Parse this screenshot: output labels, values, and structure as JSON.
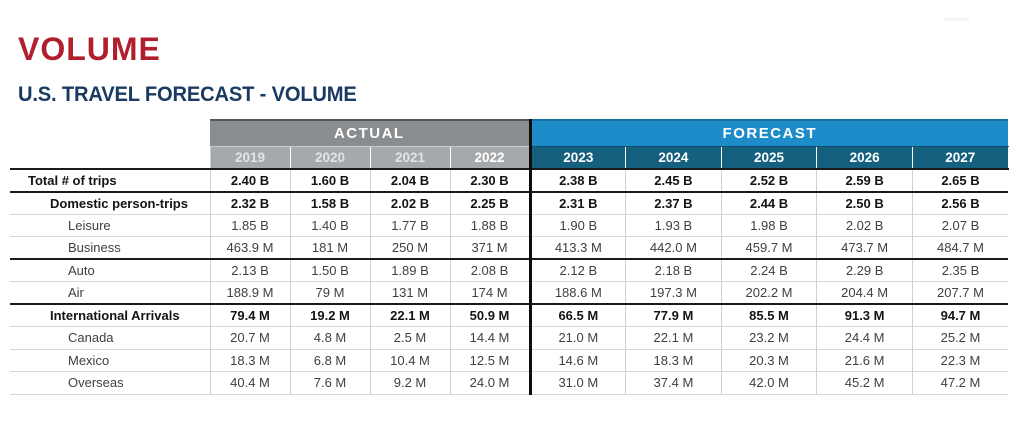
{
  "page": {
    "title": "VOLUME",
    "subtitle": "U.S. TRAVEL FORECAST - VOLUME"
  },
  "colors": {
    "title_red": "#b11f2f",
    "subtitle_navy": "#1a3a63",
    "band_gray": "#8a8d8f",
    "year_gray_bg": "#a6a9ab",
    "forecast_blue": "#1e8cc9",
    "forecast_teal": "#16607f",
    "heavy_rule": "#1a1a1a",
    "light_rule": "#d5d7d8",
    "divider_black": "#0d0d0d"
  },
  "table": {
    "sections": [
      {
        "label": "ACTUAL",
        "years": [
          "2019",
          "2020",
          "2021",
          "2022"
        ]
      },
      {
        "label": "FORECAST",
        "years": [
          "2023",
          "2024",
          "2025",
          "2026",
          "2027"
        ]
      }
    ],
    "rows": [
      {
        "label": "Total # of trips",
        "level": 0,
        "emphasis": true,
        "rule_after": "heavy",
        "actual": [
          "2.40 B",
          "1.60 B",
          "2.04 B",
          "2.30 B"
        ],
        "forecast": [
          "2.38 B",
          "2.45 B",
          "2.52 B",
          "2.59 B",
          "2.65 B"
        ]
      },
      {
        "label": "Domestic person-trips",
        "level": 1,
        "emphasis": true,
        "rule_after": "light",
        "actual": [
          "2.32 B",
          "1.58 B",
          "2.02 B",
          "2.25 B"
        ],
        "forecast": [
          "2.31 B",
          "2.37 B",
          "2.44 B",
          "2.50 B",
          "2.56 B"
        ]
      },
      {
        "label": "Leisure",
        "level": 2,
        "emphasis": false,
        "rule_after": "light",
        "actual": [
          "1.85 B",
          "1.40 B",
          "1.77 B",
          "1.88 B"
        ],
        "forecast": [
          "1.90 B",
          "1.93 B",
          "1.98 B",
          "2.02 B",
          "2.07 B"
        ]
      },
      {
        "label": "Business",
        "level": 2,
        "emphasis": false,
        "rule_after": "heavy",
        "actual": [
          "463.9 M",
          "181 M",
          "250 M",
          "371 M"
        ],
        "forecast": [
          "413.3 M",
          "442.0 M",
          "459.7 M",
          "473.7 M",
          "484.7 M"
        ]
      },
      {
        "label": "Auto",
        "level": 2,
        "emphasis": false,
        "rule_after": "light",
        "actual": [
          "2.13 B",
          "1.50 B",
          "1.89 B",
          "2.08 B"
        ],
        "forecast": [
          "2.12 B",
          "2.18 B",
          "2.24 B",
          "2.29 B",
          "2.35 B"
        ]
      },
      {
        "label": "Air",
        "level": 2,
        "emphasis": false,
        "rule_after": "heavy",
        "actual": [
          "188.9 M",
          "79 M",
          "131 M",
          "174 M"
        ],
        "forecast": [
          "188.6 M",
          "197.3 M",
          "202.2 M",
          "204.4 M",
          "207.7 M"
        ]
      },
      {
        "label": "International Arrivals",
        "level": 1,
        "emphasis": true,
        "rule_after": "light",
        "actual": [
          "79.4 M",
          "19.2 M",
          "22.1 M",
          "50.9 M"
        ],
        "forecast": [
          "66.5 M",
          "77.9 M",
          "85.5 M",
          "91.3 M",
          "94.7 M"
        ]
      },
      {
        "label": "Canada",
        "level": 2,
        "emphasis": false,
        "rule_after": "light",
        "actual": [
          "20.7 M",
          "4.8 M",
          "2.5 M",
          "14.4 M"
        ],
        "forecast": [
          "21.0 M",
          "22.1 M",
          "23.2 M",
          "24.4 M",
          "25.2 M"
        ]
      },
      {
        "label": "Mexico",
        "level": 2,
        "emphasis": false,
        "rule_after": "light",
        "actual": [
          "18.3 M",
          "6.8 M",
          "10.4 M",
          "12.5 M"
        ],
        "forecast": [
          "14.6 M",
          "18.3 M",
          "20.3 M",
          "21.6 M",
          "22.3 M"
        ]
      },
      {
        "label": "Overseas",
        "level": 2,
        "emphasis": false,
        "rule_after": "light",
        "actual": [
          "40.4 M",
          "7.6 M",
          "9.2 M",
          "24.0 M"
        ],
        "forecast": [
          "31.0 M",
          "37.4 M",
          "42.0 M",
          "45.2 M",
          "47.2 M"
        ]
      }
    ]
  }
}
